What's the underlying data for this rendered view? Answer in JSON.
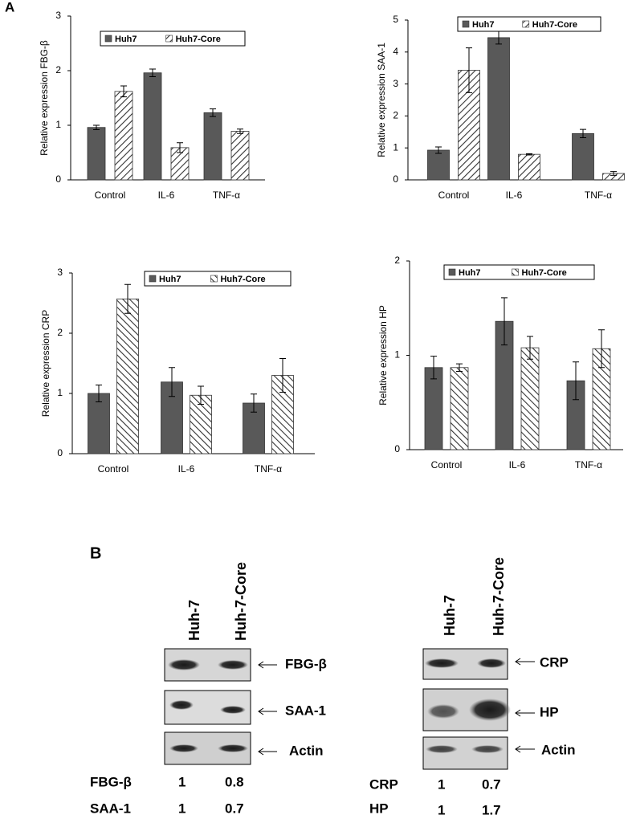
{
  "panel_labels": [
    "A",
    "B"
  ],
  "chart_data": [
    {
      "type": "bar",
      "ylabel": "Relative expression FBG-β",
      "categories": [
        "Control",
        "IL-6",
        "TNF-α"
      ],
      "ylim": [
        0,
        3
      ],
      "yticks": [
        0,
        1,
        2,
        3
      ],
      "series": [
        {
          "name": "Huh7",
          "color": "#595959",
          "values": [
            0.96,
            1.96,
            1.23
          ],
          "errors": [
            0.04,
            0.07,
            0.07
          ]
        },
        {
          "name": "Huh7-Core",
          "color": "#333333",
          "hatch": "forward",
          "values": [
            1.62,
            0.59,
            0.89
          ],
          "errors": [
            0.1,
            0.09,
            0.04
          ]
        }
      ]
    },
    {
      "type": "bar",
      "ylabel": "Relative expression SAA-1",
      "categories": [
        "Control",
        "IL-6",
        "TNF-α"
      ],
      "ylim": [
        0,
        5
      ],
      "yticks": [
        0,
        1,
        2,
        3,
        4,
        5
      ],
      "series": [
        {
          "name": "Huh7",
          "color": "#595959",
          "values": [
            0.93,
            4.45,
            1.45
          ],
          "errors": [
            0.1,
            0.2,
            0.13
          ]
        },
        {
          "name": "Huh7-Core",
          "color": "#333333",
          "hatch": "forward",
          "values": [
            3.43,
            0.8,
            0.2
          ],
          "errors": [
            0.7,
            0.02,
            0.06
          ]
        }
      ]
    },
    {
      "type": "bar",
      "ylabel": "Relative expression CRP",
      "categories": [
        "Control",
        "IL-6",
        "TNF-α"
      ],
      "ylim": [
        0,
        3
      ],
      "yticks": [
        0,
        1,
        2,
        3
      ],
      "series": [
        {
          "name": "Huh7",
          "color": "#595959",
          "values": [
            1.0,
            1.19,
            0.84
          ],
          "errors": [
            0.14,
            0.24,
            0.15
          ]
        },
        {
          "name": "Huh7-Core",
          "color": "#333333",
          "hatch": "back",
          "values": [
            2.57,
            0.97,
            1.3
          ],
          "errors": [
            0.24,
            0.15,
            0.28
          ]
        }
      ]
    },
    {
      "type": "bar",
      "ylabel": "Relative expression HP",
      "categories": [
        "Control",
        "IL-6",
        "TNF-α"
      ],
      "ylim": [
        0,
        2
      ],
      "yticks": [
        0,
        1,
        2
      ],
      "series": [
        {
          "name": "Huh7",
          "color": "#595959",
          "values": [
            0.87,
            1.36,
            0.73
          ],
          "errors": [
            0.12,
            0.25,
            0.2
          ]
        },
        {
          "name": "Huh7-Core",
          "color": "#333333",
          "hatch": "back",
          "values": [
            0.87,
            1.08,
            1.07
          ],
          "errors": [
            0.04,
            0.12,
            0.2
          ]
        }
      ]
    }
  ],
  "blots": [
    {
      "columns": [
        "Huh-7",
        "Huh-7-Core"
      ],
      "bands": [
        "FBG-β",
        "SAA-1",
        "Actin"
      ],
      "quantification": [
        {
          "label": "FBG-β",
          "values": [
            1,
            0.8
          ]
        },
        {
          "label": "SAA-1",
          "values": [
            1,
            0.7
          ]
        }
      ]
    },
    {
      "columns": [
        "Huh-7",
        "Huh-7-Core"
      ],
      "bands": [
        "CRP",
        "HP",
        "Actin"
      ],
      "quantification": [
        {
          "label": "CRP",
          "values": [
            1,
            0.7
          ]
        },
        {
          "label": "HP",
          "values": [
            1,
            1.7
          ]
        }
      ]
    }
  ]
}
